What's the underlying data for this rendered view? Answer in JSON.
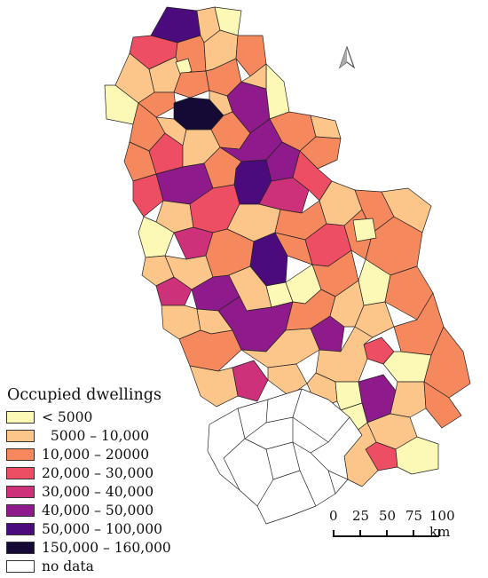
{
  "legend": {
    "title": "Occupied dwellings",
    "items": [
      {
        "label": "< 5000",
        "color": "#fcf8b6"
      },
      {
        "label": "  5000 – 10,000",
        "color": "#fcc68b"
      },
      {
        "label": "10,000 – 20000",
        "color": "#f6885d"
      },
      {
        "label": "20,000 – 30,000",
        "color": "#ee4e63"
      },
      {
        "label": "30,000 – 40,000",
        "color": "#cc3179"
      },
      {
        "label": "40,000 – 50,000",
        "color": "#8e1a8c"
      },
      {
        "label": "50,000 – 100,000",
        "color": "#4c0b7d"
      },
      {
        "label": "150,000 – 160,000",
        "color": "#150a35"
      },
      {
        "label": "no data",
        "color": "#ffffff"
      }
    ]
  },
  "scale": {
    "labels": [
      "0",
      "25",
      "50",
      "75",
      "100 km"
    ]
  },
  "north_arrow": {
    "icon": "north-arrow-icon"
  }
}
